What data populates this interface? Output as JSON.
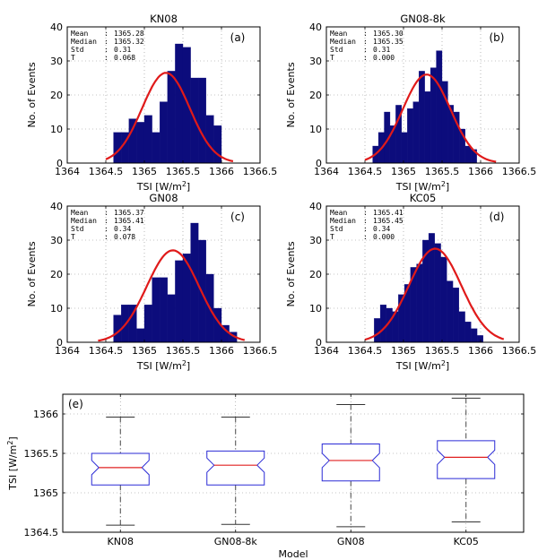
{
  "chart_data": [
    {
      "id": "a",
      "type": "bar",
      "title": "KN08",
      "panel_label": "(a)",
      "xlabel": "TSI [W/m",
      "xlabel_sup": "2",
      "xlabel_end": "]",
      "ylabel": "No. of Events",
      "xlim": [
        1364,
        1366.5
      ],
      "ylim": [
        0,
        40
      ],
      "xticks": [
        "1364",
        "1364.5",
        "1365",
        "1365.5",
        "1366",
        "1366.5"
      ],
      "yticks": [
        "0",
        "10",
        "20",
        "30",
        "40"
      ],
      "bin_start": 1364.6,
      "bin_width": 0.1,
      "values": [
        9,
        9,
        13,
        12,
        14,
        9,
        18,
        27,
        35,
        34,
        25,
        25,
        14,
        11
      ],
      "fit": {
        "mean": 1365.28,
        "std": 0.31,
        "peak": 26.5,
        "range": [
          1364.5,
          1366.15
        ]
      },
      "stats": [
        {
          "label": "Mean",
          "value": "1365.28"
        },
        {
          "label": "Median",
          "value": "1365.32"
        },
        {
          "label": "Std",
          "value": "0.31"
        },
        {
          "label": "T",
          "value": "0.068"
        }
      ]
    },
    {
      "id": "b",
      "type": "bar",
      "title": "GN08-8k",
      "panel_label": "(b)",
      "xlabel": "TSI [W/m",
      "xlabel_sup": "2",
      "xlabel_end": "]",
      "ylabel": "No. of Events",
      "xlim": [
        1364,
        1366.5
      ],
      "ylim": [
        0,
        40
      ],
      "xticks": [
        "1364",
        "1364.5",
        "1365",
        "1365.5",
        "1366",
        "1366.5"
      ],
      "yticks": [
        "0",
        "10",
        "20",
        "30",
        "40"
      ],
      "bin_start": 1364.6,
      "bin_width": 0.075,
      "values": [
        5,
        9,
        15,
        11,
        17,
        9,
        16,
        18,
        27,
        21,
        28,
        33,
        24,
        17,
        15,
        10,
        5,
        4
      ],
      "fit": {
        "mean": 1365.3,
        "std": 0.31,
        "peak": 26,
        "range": [
          1364.5,
          1366.2
        ]
      },
      "stats": [
        {
          "label": "Mean",
          "value": "1365.30"
        },
        {
          "label": "Median",
          "value": "1365.35"
        },
        {
          "label": "Std",
          "value": "0.31"
        },
        {
          "label": "T",
          "value": "0.000"
        }
      ]
    },
    {
      "id": "c",
      "type": "bar",
      "title": "GN08",
      "panel_label": "(c)",
      "xlabel": "TSI [W/m",
      "xlabel_sup": "2",
      "xlabel_end": "]",
      "ylabel": "No. of Events",
      "xlim": [
        1364,
        1366.5
      ],
      "ylim": [
        0,
        40
      ],
      "xticks": [
        "1364",
        "1364.5",
        "1365",
        "1365.5",
        "1366",
        "1366.5"
      ],
      "yticks": [
        "0",
        "10",
        "20",
        "30",
        "40"
      ],
      "bin_start": 1364.6,
      "bin_width": 0.1,
      "values": [
        8,
        11,
        11,
        4,
        11,
        19,
        19,
        14,
        24,
        26,
        35,
        30,
        20,
        10,
        5,
        3
      ],
      "fit": {
        "mean": 1365.37,
        "std": 0.34,
        "peak": 27,
        "range": [
          1364.4,
          1366.3
        ]
      },
      "stats": [
        {
          "label": "Mean",
          "value": "1365.37"
        },
        {
          "label": "Median",
          "value": "1365.41"
        },
        {
          "label": "Std",
          "value": "0.34"
        },
        {
          "label": "T",
          "value": "0.078"
        }
      ]
    },
    {
      "id": "d",
      "type": "bar",
      "title": "KC05",
      "panel_label": "(d)",
      "xlabel": "TSI [W/m",
      "xlabel_sup": "2",
      "xlabel_end": "]",
      "ylabel": "No. of Events",
      "xlim": [
        1364,
        1366.5
      ],
      "ylim": [
        0,
        40
      ],
      "xticks": [
        "1364",
        "1364.5",
        "1365",
        "1365.5",
        "1366",
        "1366.5"
      ],
      "yticks": [
        "0",
        "10",
        "20",
        "30",
        "40"
      ],
      "bin_start": 1364.62,
      "bin_width": 0.0785,
      "values": [
        7,
        11,
        10,
        9,
        14,
        17,
        22,
        23,
        30,
        32,
        29,
        25,
        18,
        16,
        9,
        6,
        4,
        2
      ],
      "fit": {
        "mean": 1365.41,
        "std": 0.34,
        "peak": 27.5,
        "range": [
          1364.5,
          1366.3
        ]
      },
      "stats": [
        {
          "label": "Mean",
          "value": "1365.41"
        },
        {
          "label": "Median",
          "value": "1365.45"
        },
        {
          "label": "Std",
          "value": "0.34"
        },
        {
          "label": "T",
          "value": "0.000"
        }
      ]
    },
    {
      "id": "e",
      "type": "box",
      "panel_label": "(e)",
      "xlabel": "Model",
      "ylabel": "TSI [W/m",
      "ylabel_sup": "2",
      "ylabel_end": "]",
      "ylim": [
        1364.5,
        1366.25
      ],
      "yticks": [
        "1364.5",
        "1365",
        "1365.5",
        "1366"
      ],
      "categories": [
        "KN08",
        "GN08-8k",
        "GN08",
        "KC05"
      ],
      "boxes": [
        {
          "min": 1364.59,
          "q1": 1365.1,
          "median": 1365.32,
          "q3": 1365.5,
          "max": 1365.96
        },
        {
          "min": 1364.6,
          "q1": 1365.1,
          "median": 1365.35,
          "q3": 1365.53,
          "max": 1365.96
        },
        {
          "min": 1364.57,
          "q1": 1365.15,
          "median": 1365.41,
          "q3": 1365.62,
          "max": 1366.12
        },
        {
          "min": 1364.63,
          "q1": 1365.18,
          "median": 1365.45,
          "q3": 1365.66,
          "max": 1366.2
        }
      ]
    }
  ],
  "colors": {
    "bar": "#0c0c7c",
    "fit": "#e01a1a",
    "box": "#2a2ad6",
    "median": "#e02020",
    "grid": "#8a8a8a"
  }
}
